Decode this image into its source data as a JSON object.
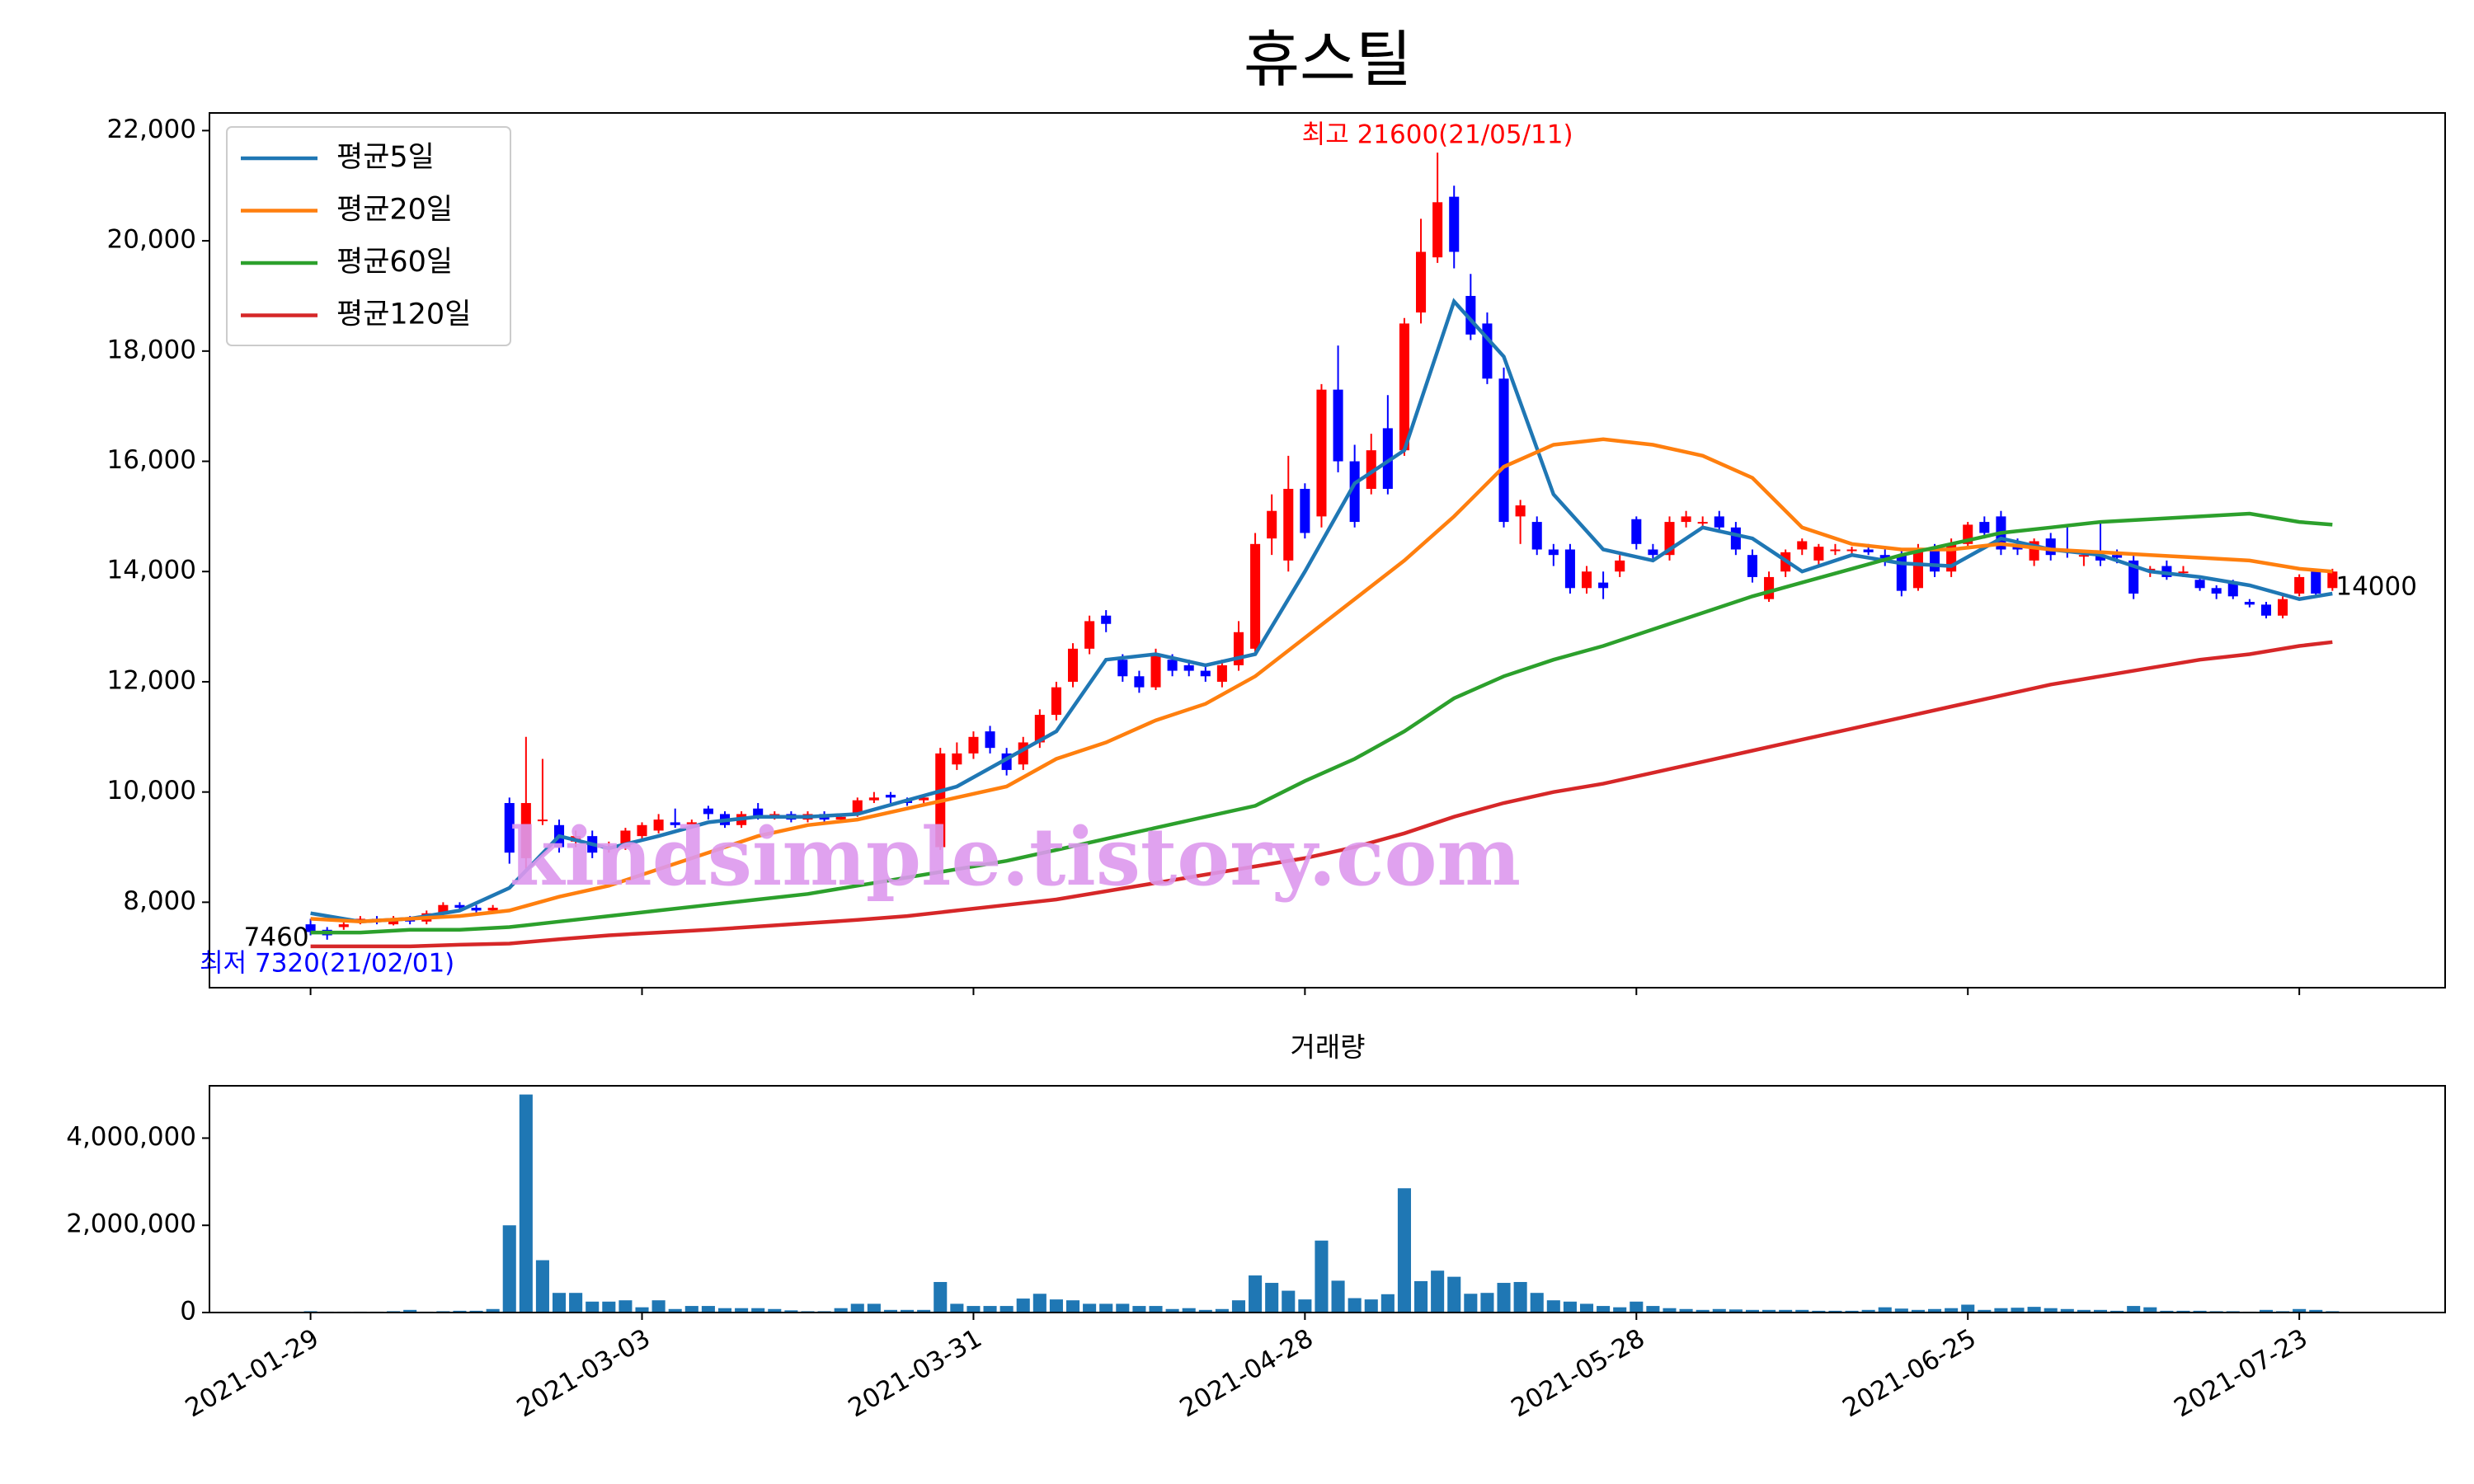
{
  "chart_data": [
    {
      "type": "candlestick",
      "title": "휴스틸",
      "up_color": "#ff0000",
      "down_color": "#0000ff",
      "open": [
        7600,
        7500,
        7550,
        7650,
        7700,
        7600,
        7700,
        7650,
        7800,
        7950,
        7900,
        7850,
        9800,
        8800,
        9500,
        9400,
        9100,
        9200,
        9000,
        9000,
        9200,
        9300,
        9450,
        9400,
        9700,
        9600,
        9400,
        9700,
        9550,
        9600,
        9500,
        9600,
        9500,
        9600,
        9850,
        9950,
        9850,
        9850,
        9000,
        10500,
        10700,
        11100,
        10700,
        10500,
        10900,
        11400,
        12000,
        12600,
        13200,
        12400,
        12100,
        11900,
        12400,
        12300,
        12200,
        12000,
        12300,
        12600,
        14600,
        14200,
        15500,
        15000,
        17300,
        16000,
        15500,
        16600,
        16200,
        18700,
        19700,
        20800,
        19000,
        18500,
        17500,
        15000,
        14900,
        14400,
        14400,
        13700,
        13800,
        14000,
        14950,
        14400,
        14300,
        14900,
        14900,
        15000,
        14800,
        14300,
        13500,
        14000,
        14400,
        14200,
        14400,
        14400,
        14400,
        14300,
        14300,
        13700,
        14400,
        14000,
        14500,
        14900,
        15000,
        14500,
        14200,
        14600,
        14400,
        14300,
        14300,
        14300,
        14200,
        14000,
        14100,
        14000,
        13850,
        13700,
        13800,
        13450,
        13400,
        13200,
        13600,
        14000,
        13700
      ],
      "high": [
        7700,
        7550,
        7650,
        7750,
        7750,
        7750,
        7750,
        7850,
        8000,
        8000,
        7950,
        7950,
        9900,
        11000,
        10600,
        9500,
        9300,
        9300,
        9100,
        9350,
        9450,
        9600,
        9700,
        9500,
        9750,
        9650,
        9650,
        9800,
        9650,
        9650,
        9650,
        9650,
        9600,
        9900,
        10000,
        10000,
        9900,
        9950,
        10800,
        10900,
        11100,
        11200,
        10800,
        11000,
        11500,
        12000,
        12700,
        13200,
        13300,
        12500,
        12200,
        12600,
        12500,
        12400,
        12300,
        12400,
        13100,
        14700,
        15400,
        16100,
        15600,
        17400,
        18100,
        16300,
        16500,
        17200,
        18600,
        20400,
        21600,
        21000,
        19400,
        18700,
        17700,
        15300,
        15000,
        14500,
        14500,
        14100,
        14000,
        14300,
        15000,
        14500,
        15000,
        15100,
        15000,
        15100,
        14900,
        14400,
        14000,
        14400,
        14600,
        14500,
        14500,
        14450,
        14500,
        14400,
        14400,
        14500,
        14500,
        14600,
        14900,
        15000,
        15100,
        14600,
        14600,
        14700,
        14850,
        14400,
        14900,
        14400,
        14300,
        14100,
        14200,
        14100,
        13900,
        13750,
        13850,
        13500,
        13450,
        13550,
        13950,
        14050,
        14050
      ],
      "low": [
        7400,
        7320,
        7500,
        7600,
        7600,
        7580,
        7600,
        7600,
        7750,
        7850,
        7800,
        7800,
        8700,
        8600,
        9400,
        8900,
        9000,
        8800,
        8900,
        8950,
        9150,
        9250,
        9350,
        9350,
        9500,
        9350,
        9350,
        9500,
        9500,
        9450,
        9450,
        9450,
        9450,
        9550,
        9800,
        9800,
        9750,
        9800,
        8950,
        10400,
        10600,
        10700,
        10300,
        10400,
        10800,
        11300,
        11900,
        12500,
        12900,
        12000,
        11800,
        11850,
        12100,
        12100,
        12000,
        11900,
        12200,
        12500,
        14300,
        14000,
        14600,
        14800,
        15800,
        14800,
        15400,
        15400,
        16100,
        18500,
        19600,
        19500,
        18200,
        17400,
        14800,
        14500,
        14300,
        14100,
        13600,
        13600,
        13500,
        13900,
        14400,
        14200,
        14200,
        14800,
        14800,
        14700,
        14300,
        13800,
        13450,
        13900,
        14300,
        14100,
        14300,
        14300,
        14300,
        14100,
        13550,
        13650,
        13900,
        13900,
        14400,
        14600,
        14300,
        14300,
        14100,
        14200,
        14250,
        14100,
        14100,
        14150,
        13500,
        13900,
        13850,
        13900,
        13650,
        13500,
        13500,
        13350,
        13150,
        13150,
        13550,
        13550,
        13650
      ],
      "close": [
        7460,
        7400,
        7600,
        7700,
        7650,
        7700,
        7650,
        7800,
        7950,
        7900,
        7850,
        7900,
        8900,
        9800,
        9500,
        9000,
        9200,
        8900,
        9000,
        9300,
        9400,
        9500,
        9400,
        9450,
        9600,
        9400,
        9600,
        9550,
        9600,
        9500,
        9600,
        9500,
        9550,
        9850,
        9900,
        9900,
        9800,
        9900,
        10700,
        10700,
        11000,
        10800,
        10400,
        10900,
        11400,
        11900,
        12600,
        13100,
        13050,
        12100,
        11900,
        12500,
        12200,
        12200,
        12100,
        12300,
        12900,
        14500,
        15100,
        15500,
        14700,
        17300,
        16000,
        14900,
        16200,
        15500,
        18500,
        19800,
        20700,
        19800,
        18300,
        17500,
        14900,
        15200,
        14400,
        14300,
        13700,
        14000,
        13700,
        14200,
        14500,
        14300,
        14900,
        15000,
        14900,
        14800,
        14400,
        13900,
        13900,
        14350,
        14550,
        14450,
        14400,
        14400,
        14350,
        14200,
        13650,
        14400,
        14000,
        14500,
        14850,
        14700,
        14400,
        14400,
        14550,
        14300,
        14350,
        14300,
        14200,
        14250,
        13600,
        14050,
        13900,
        14000,
        13700,
        13600,
        13550,
        13400,
        13200,
        13500,
        13900,
        13600,
        14000
      ],
      "series": [
        {
          "name": "평균5일",
          "color": "#1f77b4",
          "x": [
            0,
            3,
            6,
            9,
            12,
            15,
            18,
            21,
            24,
            27,
            30,
            33,
            36,
            39,
            42,
            45,
            48,
            51,
            54,
            57,
            60,
            63,
            66,
            69,
            72,
            75,
            78,
            81,
            84,
            87,
            90,
            93,
            96,
            99,
            102,
            105,
            108,
            111,
            114,
            117,
            120,
            122
          ],
          "values": [
            7800,
            7650,
            7700,
            7850,
            8260,
            9200,
            8980,
            9200,
            9450,
            9550,
            9550,
            9600,
            9850,
            10100,
            10600,
            11100,
            12400,
            12500,
            12300,
            12500,
            14000,
            15600,
            16200,
            18900,
            17900,
            15400,
            14400,
            14200,
            14800,
            14600,
            14000,
            14300,
            14150,
            14100,
            14600,
            14400,
            14300,
            14000,
            13900,
            13750,
            13500,
            13600
          ]
        },
        {
          "name": "평균20일",
          "color": "#ff7f0e",
          "x": [
            0,
            3,
            6,
            9,
            12,
            15,
            18,
            21,
            24,
            27,
            30,
            33,
            36,
            39,
            42,
            45,
            48,
            51,
            54,
            57,
            60,
            63,
            66,
            69,
            72,
            75,
            78,
            81,
            84,
            87,
            90,
            93,
            96,
            99,
            102,
            105,
            108,
            111,
            114,
            117,
            120,
            122
          ],
          "values": [
            7700,
            7650,
            7700,
            7750,
            7850,
            8100,
            8300,
            8600,
            8900,
            9200,
            9400,
            9500,
            9700,
            9900,
            10100,
            10600,
            10900,
            11300,
            11600,
            12100,
            12800,
            13500,
            14200,
            15000,
            15900,
            16300,
            16400,
            16300,
            16100,
            15700,
            14800,
            14500,
            14400,
            14400,
            14500,
            14400,
            14350,
            14300,
            14250,
            14200,
            14050,
            14000
          ]
        },
        {
          "name": "평균60일",
          "color": "#2ca02c",
          "x": [
            0,
            3,
            6,
            9,
            12,
            15,
            18,
            21,
            24,
            27,
            30,
            33,
            36,
            39,
            42,
            45,
            48,
            51,
            54,
            57,
            60,
            63,
            66,
            69,
            72,
            75,
            78,
            81,
            84,
            87,
            90,
            93,
            96,
            99,
            102,
            105,
            108,
            111,
            114,
            117,
            120,
            122
          ],
          "values": [
            7450,
            7450,
            7500,
            7500,
            7550,
            7650,
            7750,
            7850,
            7950,
            8050,
            8150,
            8300,
            8450,
            8600,
            8750,
            8950,
            9150,
            9350,
            9550,
            9750,
            10200,
            10600,
            11100,
            11700,
            12100,
            12400,
            12650,
            12950,
            13250,
            13550,
            13800,
            14050,
            14300,
            14500,
            14700,
            14800,
            14900,
            14950,
            15000,
            15050,
            14900,
            14850
          ]
        },
        {
          "name": "평균120일",
          "color": "#d62728",
          "x": [
            0,
            3,
            6,
            9,
            12,
            15,
            18,
            21,
            24,
            27,
            30,
            33,
            36,
            39,
            42,
            45,
            48,
            51,
            54,
            57,
            60,
            63,
            66,
            69,
            72,
            75,
            78,
            81,
            84,
            87,
            90,
            93,
            96,
            99,
            102,
            105,
            108,
            111,
            114,
            117,
            120,
            122
          ],
          "values": [
            7200,
            7200,
            7200,
            7230,
            7250,
            7330,
            7400,
            7450,
            7500,
            7560,
            7620,
            7680,
            7750,
            7850,
            7950,
            8050,
            8200,
            8350,
            8500,
            8650,
            8800,
            9000,
            9250,
            9550,
            9800,
            10000,
            10150,
            10350,
            10550,
            10750,
            10950,
            11150,
            11350,
            11550,
            11750,
            11950,
            12100,
            12250,
            12400,
            12500,
            12650,
            12720
          ]
        }
      ],
      "annotations": [
        {
          "text": "최고 21600(21/05/11)",
          "x": 68,
          "y": 21600,
          "color": "#ff0000"
        },
        {
          "text": "최저 7320(21/02/01)",
          "x": 1,
          "y": 7320,
          "color": "#0000ff"
        },
        {
          "text": "7460",
          "x": 0,
          "y": 7460,
          "color": "#000000"
        },
        {
          "text": "14000",
          "x": 122,
          "y": 14000,
          "color": "#000000"
        }
      ],
      "watermark": "kindsimple.tistory.com",
      "legend": "upper left",
      "xlim": [
        -6.1,
        128.8
      ],
      "xticks": [
        0,
        20,
        40,
        60,
        80,
        100,
        120
      ],
      "ylim": [
        6450,
        22320
      ],
      "yticks": [
        {
          "value": 8000,
          "label": "8,000"
        },
        {
          "value": 10000,
          "label": "10,000"
        },
        {
          "value": 12000,
          "label": "12,000"
        },
        {
          "value": 14000,
          "label": "14,000"
        },
        {
          "value": 16000,
          "label": "16,000"
        },
        {
          "value": 18000,
          "label": "18,000"
        },
        {
          "value": 20000,
          "label": "20,000"
        },
        {
          "value": 22000,
          "label": "22,000"
        }
      ]
    },
    {
      "type": "bar",
      "title": "거래량",
      "color": "#1f77b4",
      "values": [
        30000,
        20000,
        20000,
        20000,
        20000,
        30000,
        60000,
        20000,
        30000,
        40000,
        40000,
        80000,
        2000000,
        5000000,
        1200000,
        450000,
        450000,
        250000,
        250000,
        280000,
        120000,
        280000,
        80000,
        150000,
        150000,
        100000,
        100000,
        100000,
        80000,
        50000,
        30000,
        30000,
        100000,
        200000,
        200000,
        60000,
        60000,
        60000,
        700000,
        200000,
        150000,
        150000,
        150000,
        320000,
        430000,
        300000,
        280000,
        200000,
        200000,
        200000,
        150000,
        150000,
        80000,
        100000,
        60000,
        80000,
        280000,
        850000,
        680000,
        500000,
        300000,
        1650000,
        730000,
        330000,
        300000,
        420000,
        2850000,
        720000,
        960000,
        820000,
        430000,
        450000,
        680000,
        700000,
        450000,
        280000,
        250000,
        200000,
        150000,
        120000,
        250000,
        150000,
        100000,
        80000,
        60000,
        80000,
        70000,
        60000,
        60000,
        60000,
        60000,
        40000,
        40000,
        40000,
        60000,
        120000,
        90000,
        60000,
        80000,
        100000,
        180000,
        60000,
        100000,
        110000,
        130000,
        100000,
        80000,
        60000,
        60000,
        40000,
        150000,
        120000,
        40000,
        40000,
        40000,
        30000,
        30000,
        20000,
        60000,
        30000,
        80000,
        60000,
        30000
      ],
      "xlim": [
        -6.1,
        128.8
      ],
      "xticks": [
        {
          "value": 0,
          "label": "2021-01-29"
        },
        {
          "value": 20,
          "label": "2021-03-03"
        },
        {
          "value": 40,
          "label": "2021-03-31"
        },
        {
          "value": 60,
          "label": "2021-04-28"
        },
        {
          "value": 80,
          "label": "2021-05-28"
        },
        {
          "value": 100,
          "label": "2021-06-25"
        },
        {
          "value": 120,
          "label": "2021-07-23"
        }
      ],
      "ylim": [
        0,
        5200000
      ],
      "yticks": [
        0,
        {
          "value": 2000000,
          "label": "2,000,000"
        },
        {
          "value": 4000000,
          "label": "4,000,000"
        }
      ]
    }
  ]
}
